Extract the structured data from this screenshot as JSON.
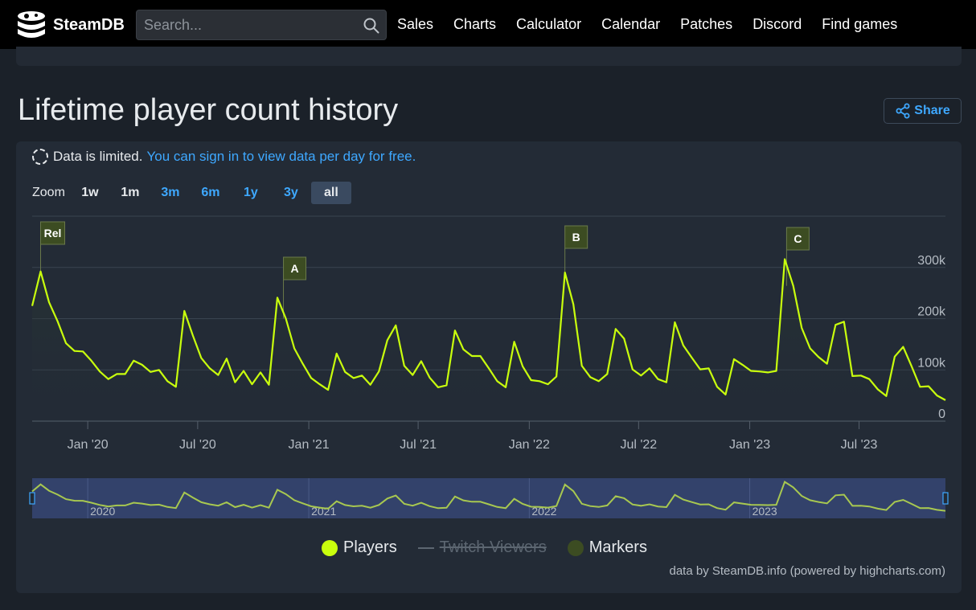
{
  "header": {
    "brand": "SteamDB",
    "search_placeholder": "Search...",
    "nav": [
      "Sales",
      "Charts",
      "Calculator",
      "Calendar",
      "Patches",
      "Discord",
      "Find games"
    ]
  },
  "page": {
    "title": "Lifetime player count history",
    "share_label": "Share"
  },
  "notice": {
    "text": "Data is limited.",
    "link": "You can sign in to view data per day for free."
  },
  "zoom": {
    "label": "Zoom",
    "options": [
      {
        "label": "1w",
        "state": "off"
      },
      {
        "label": "1m",
        "state": "off"
      },
      {
        "label": "3m",
        "state": "on"
      },
      {
        "label": "6m",
        "state": "on"
      },
      {
        "label": "1y",
        "state": "on"
      },
      {
        "label": "3y",
        "state": "on"
      },
      {
        "label": "all",
        "state": "selected"
      }
    ]
  },
  "chart_data": {
    "type": "line",
    "x_tick_labels": [
      "Jan '20",
      "Jul '20",
      "Jan '21",
      "Jul '21",
      "Jan '22",
      "Jul '22",
      "Jan '23",
      "Jul '23"
    ],
    "y_tick_labels": [
      "0",
      "100k",
      "200k",
      "300k"
    ],
    "ylim": [
      0,
      400000
    ],
    "grid": true,
    "series": [
      {
        "name": "Players",
        "color": "#c9ff0d",
        "points": [
          [
            "2019-10-01",
            225000
          ],
          [
            "2019-10-15",
            292000
          ],
          [
            "2019-10-29",
            232000
          ],
          [
            "2019-11-12",
            195000
          ],
          [
            "2019-11-26",
            152000
          ],
          [
            "2019-12-10",
            137000
          ],
          [
            "2019-12-24",
            136000
          ],
          [
            "2020-01-07",
            118000
          ],
          [
            "2020-01-21",
            97000
          ],
          [
            "2020-02-04",
            82000
          ],
          [
            "2020-02-18",
            92000
          ],
          [
            "2020-03-03",
            92000
          ],
          [
            "2020-03-17",
            118000
          ],
          [
            "2020-03-31",
            110000
          ],
          [
            "2020-04-14",
            96000
          ],
          [
            "2020-04-28",
            100000
          ],
          [
            "2020-05-12",
            78000
          ],
          [
            "2020-05-26",
            67000
          ],
          [
            "2020-06-09",
            215000
          ],
          [
            "2020-06-23",
            167000
          ],
          [
            "2020-07-07",
            123000
          ],
          [
            "2020-07-21",
            103000
          ],
          [
            "2020-08-04",
            90000
          ],
          [
            "2020-08-18",
            122000
          ],
          [
            "2020-09-01",
            76000
          ],
          [
            "2020-09-15",
            98000
          ],
          [
            "2020-09-29",
            72000
          ],
          [
            "2020-10-13",
            95000
          ],
          [
            "2020-10-27",
            71000
          ],
          [
            "2020-11-10",
            241000
          ],
          [
            "2020-11-24",
            200000
          ],
          [
            "2020-12-08",
            142000
          ],
          [
            "2020-12-22",
            112000
          ],
          [
            "2021-01-05",
            84000
          ],
          [
            "2021-01-19",
            72000
          ],
          [
            "2021-02-02",
            61000
          ],
          [
            "2021-02-16",
            132000
          ],
          [
            "2021-03-02",
            96000
          ],
          [
            "2021-03-16",
            84000
          ],
          [
            "2021-03-30",
            89000
          ],
          [
            "2021-04-13",
            71000
          ],
          [
            "2021-04-27",
            97000
          ],
          [
            "2021-05-11",
            158000
          ],
          [
            "2021-05-25",
            187000
          ],
          [
            "2021-06-08",
            108000
          ],
          [
            "2021-06-22",
            90000
          ],
          [
            "2021-07-06",
            117000
          ],
          [
            "2021-07-20",
            85000
          ],
          [
            "2021-08-03",
            66000
          ],
          [
            "2021-08-17",
            70000
          ],
          [
            "2021-08-31",
            177000
          ],
          [
            "2021-09-14",
            140000
          ],
          [
            "2021-09-28",
            127000
          ],
          [
            "2021-10-12",
            127000
          ],
          [
            "2021-10-26",
            103000
          ],
          [
            "2021-11-09",
            78000
          ],
          [
            "2021-11-23",
            66000
          ],
          [
            "2021-12-07",
            155000
          ],
          [
            "2021-12-21",
            107000
          ],
          [
            "2022-01-04",
            80000
          ],
          [
            "2022-01-18",
            78000
          ],
          [
            "2022-02-01",
            72000
          ],
          [
            "2022-02-15",
            87000
          ],
          [
            "2022-03-01",
            290000
          ],
          [
            "2022-03-15",
            228000
          ],
          [
            "2022-03-29",
            108000
          ],
          [
            "2022-04-12",
            86000
          ],
          [
            "2022-04-26",
            78000
          ],
          [
            "2022-05-10",
            92000
          ],
          [
            "2022-05-24",
            180000
          ],
          [
            "2022-06-07",
            161000
          ],
          [
            "2022-06-21",
            101000
          ],
          [
            "2022-07-05",
            89000
          ],
          [
            "2022-07-19",
            103000
          ],
          [
            "2022-08-02",
            82000
          ],
          [
            "2022-08-16",
            76000
          ],
          [
            "2022-08-30",
            193000
          ],
          [
            "2022-09-13",
            148000
          ],
          [
            "2022-09-27",
            124000
          ],
          [
            "2022-10-11",
            101000
          ],
          [
            "2022-10-25",
            103000
          ],
          [
            "2022-11-08",
            67000
          ],
          [
            "2022-11-22",
            52000
          ],
          [
            "2022-12-06",
            121000
          ],
          [
            "2022-12-20",
            110000
          ],
          [
            "2023-01-03",
            98000
          ],
          [
            "2023-01-17",
            97000
          ],
          [
            "2023-01-31",
            95000
          ],
          [
            "2023-02-14",
            98000
          ],
          [
            "2023-02-28",
            316000
          ],
          [
            "2023-03-14",
            264000
          ],
          [
            "2023-03-28",
            182000
          ],
          [
            "2023-04-11",
            142000
          ],
          [
            "2023-04-25",
            125000
          ],
          [
            "2023-05-09",
            112000
          ],
          [
            "2023-05-23",
            188000
          ],
          [
            "2023-06-06",
            194000
          ],
          [
            "2023-06-20",
            88000
          ],
          [
            "2023-07-04",
            89000
          ],
          [
            "2023-07-18",
            82000
          ],
          [
            "2023-08-01",
            62000
          ],
          [
            "2023-08-15",
            49000
          ],
          [
            "2023-08-29",
            126000
          ],
          [
            "2023-09-12",
            145000
          ],
          [
            "2023-09-26",
            107000
          ],
          [
            "2023-10-10",
            67000
          ],
          [
            "2023-10-24",
            68000
          ],
          [
            "2023-11-07",
            50000
          ],
          [
            "2023-11-21",
            41000
          ]
        ]
      },
      {
        "name": "Twitch Viewers",
        "hidden": true,
        "points": []
      }
    ],
    "markers": [
      {
        "label": "Rel",
        "date": "2019-10-15"
      },
      {
        "label": "A",
        "date": "2020-11-20"
      },
      {
        "label": "B",
        "date": "2022-03-01"
      },
      {
        "label": "C",
        "date": "2023-03-03"
      }
    ],
    "marker_color": "#3c4c22",
    "navigator_year_labels": [
      "2020",
      "2021",
      "2022",
      "2023"
    ],
    "legend": [
      {
        "label": "Players",
        "color": "#c9ff0d",
        "hidden": false
      },
      {
        "label": "Twitch Viewers",
        "color": "#5c6671",
        "hidden": true
      },
      {
        "label": "Markers",
        "color": "#3c4c22",
        "hidden": false
      }
    ]
  },
  "credit": "data by SteamDB.info (powered by highcharts.com)"
}
